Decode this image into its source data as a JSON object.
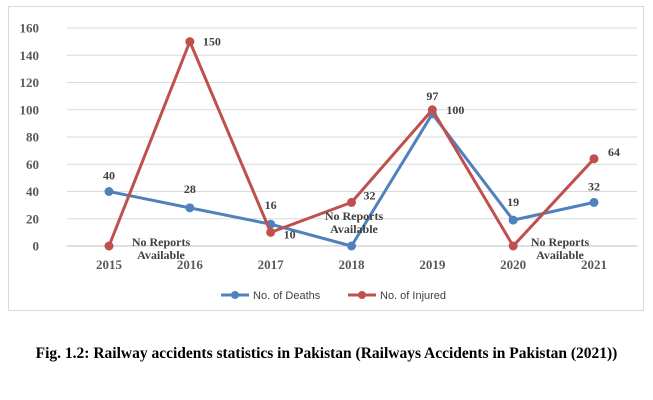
{
  "chart_data": {
    "type": "line",
    "categories": [
      "2015",
      "2016",
      "2017",
      "2018",
      "2019",
      "2020",
      "2021"
    ],
    "series": [
      {
        "name": "No. of Deaths",
        "color": "#4f81bd",
        "values": [
          40,
          28,
          16,
          0,
          97,
          19,
          32
        ],
        "labels": [
          "40",
          "28",
          "16",
          "",
          "97",
          "19",
          "32"
        ]
      },
      {
        "name": "No. of Injured",
        "color": "#c0504d",
        "values": [
          0,
          150,
          10,
          32,
          100,
          0,
          64
        ],
        "labels": [
          "",
          "150",
          "10",
          "32",
          "100",
          "",
          "64"
        ]
      }
    ],
    "annotations": [
      "No Reports Available",
      "No Reports Available",
      "No Reports Available"
    ],
    "ylim": [
      0,
      160
    ],
    "yticks": [
      "0",
      "20",
      "40",
      "60",
      "80",
      "100",
      "120",
      "140",
      "160"
    ],
    "grid": true,
    "legend_position": "bottom"
  },
  "caption": "Fig. 1.2: Railway accidents statistics in Pakistan (Railways Accidents in Pakistan (2021))"
}
